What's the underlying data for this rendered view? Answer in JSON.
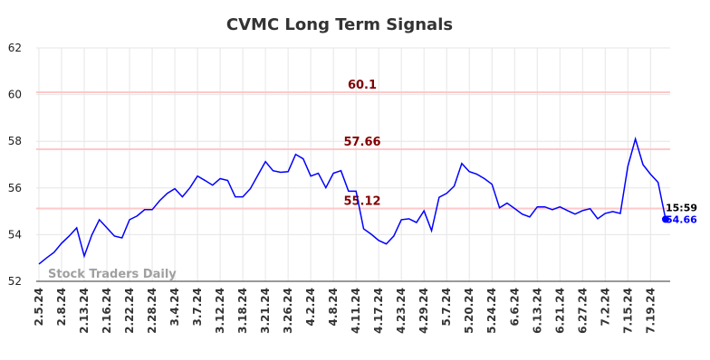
{
  "chart_data": {
    "type": "line",
    "title": "CVMC Long Term Signals",
    "categories": [
      "2.5.24",
      null,
      null,
      "2.8.24",
      null,
      null,
      "2.13.24",
      null,
      null,
      "2.16.24",
      null,
      null,
      "2.22.24",
      null,
      null,
      "2.28.24",
      null,
      null,
      "3.4.24",
      null,
      null,
      "3.7.24",
      null,
      null,
      "3.12.24",
      null,
      null,
      "3.18.24",
      null,
      null,
      "3.21.24",
      null,
      null,
      "3.26.24",
      null,
      null,
      "4.2.24",
      null,
      null,
      "4.8.24",
      null,
      null,
      "4.11.24",
      null,
      null,
      "4.17.24",
      null,
      null,
      "4.23.24",
      null,
      null,
      "4.29.24",
      null,
      null,
      "5.7.24",
      null,
      null,
      "5.20.24",
      null,
      null,
      "5.24.24",
      null,
      null,
      "6.6.24",
      null,
      null,
      "6.13.24",
      null,
      null,
      "6.21.24",
      null,
      null,
      "6.27.24",
      null,
      null,
      "7.2.24",
      null,
      null,
      "7.15.24",
      null,
      null,
      "7.19.24",
      null,
      null
    ],
    "values": [
      52.74,
      53.0,
      53.24,
      53.63,
      53.94,
      54.29,
      53.08,
      53.98,
      54.64,
      54.29,
      53.94,
      53.86,
      54.64,
      54.8,
      55.07,
      55.07,
      55.46,
      55.77,
      55.97,
      55.62,
      56.01,
      56.51,
      56.32,
      56.12,
      56.4,
      56.32,
      55.62,
      55.62,
      55.97,
      56.55,
      57.13,
      56.74,
      56.67,
      56.7,
      57.44,
      57.25,
      56.51,
      56.63,
      56.01,
      56.63,
      56.74,
      55.86,
      55.86,
      54.25,
      54.02,
      53.75,
      53.6,
      53.94,
      54.64,
      54.68,
      54.52,
      55.02,
      54.17,
      55.6,
      55.77,
      56.08,
      57.05,
      56.7,
      56.59,
      56.4,
      56.16,
      55.15,
      55.35,
      55.12,
      54.88,
      54.76,
      55.19,
      55.19,
      55.07,
      55.19,
      55.03,
      54.88,
      55.03,
      55.11,
      54.68,
      54.91,
      54.99,
      54.91,
      56.93,
      58.1,
      57.0,
      56.59,
      56.24,
      54.66
    ],
    "color": "#0000ff",
    "reference_lines": [
      60.1,
      57.66,
      55.12
    ],
    "reference_color": "#ffc8c8",
    "reference_label_color": "#800000",
    "last_time": "15:59",
    "watermark": "Stock Traders Daily",
    "ylim": [
      52,
      62
    ],
    "yticks": [
      52,
      54,
      56,
      58,
      60,
      62
    ],
    "grid": true
  }
}
